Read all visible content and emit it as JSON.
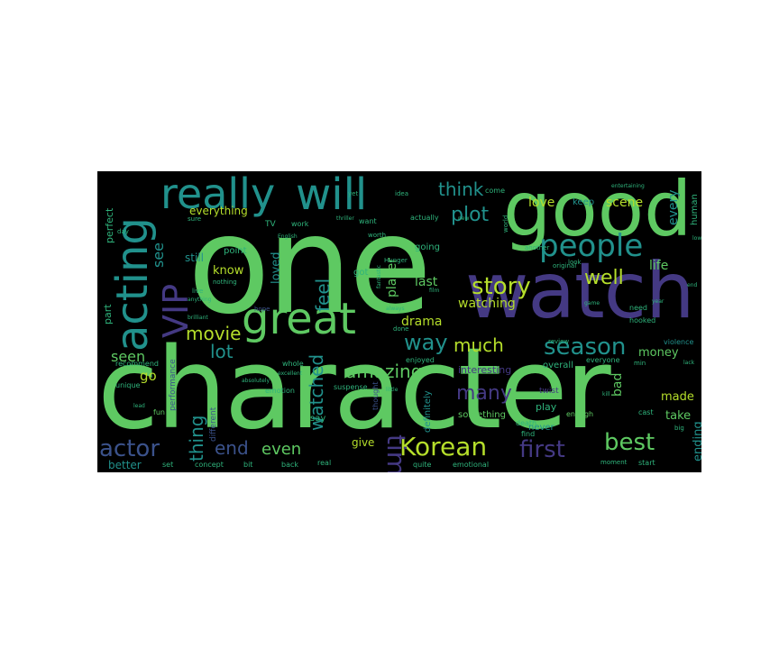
{
  "colors": {
    "background": "#000000",
    "green": "#5ec962",
    "teal": "#21918c",
    "blue": "#3b528b",
    "purple": "#443983",
    "yellowgreen": "#b5de2b",
    "darkgreen": "#2fb47c"
  },
  "words": [
    {
      "text": "one"
    },
    {
      "text": "character"
    },
    {
      "text": "good"
    },
    {
      "text": "watch"
    },
    {
      "text": "will"
    },
    {
      "text": "really"
    },
    {
      "text": "acting"
    },
    {
      "text": "people"
    },
    {
      "text": "great"
    },
    {
      "text": "story"
    },
    {
      "text": "VIP"
    },
    {
      "text": "Korean"
    },
    {
      "text": "time"
    },
    {
      "text": "season"
    },
    {
      "text": "best"
    },
    {
      "text": "first"
    },
    {
      "text": "actor"
    },
    {
      "text": "end"
    },
    {
      "text": "watched"
    },
    {
      "text": "way"
    },
    {
      "text": "amazing"
    },
    {
      "text": "many"
    },
    {
      "text": "think"
    },
    {
      "text": "plot"
    },
    {
      "text": "well"
    },
    {
      "text": "much"
    },
    {
      "text": "feel"
    },
    {
      "text": "movie"
    },
    {
      "text": "lot"
    },
    {
      "text": "thing"
    },
    {
      "text": "even"
    },
    {
      "text": "see"
    },
    {
      "text": "seen"
    },
    {
      "text": "go"
    },
    {
      "text": "life"
    },
    {
      "text": "love"
    },
    {
      "text": "scene"
    },
    {
      "text": "every"
    },
    {
      "text": "drama"
    },
    {
      "text": "watching"
    },
    {
      "text": "know"
    },
    {
      "text": "last"
    },
    {
      "text": "player"
    },
    {
      "text": "loved"
    },
    {
      "text": "money"
    },
    {
      "text": "made"
    },
    {
      "text": "bad"
    },
    {
      "text": "take"
    },
    {
      "text": "ending"
    },
    {
      "text": "give"
    },
    {
      "text": "better"
    },
    {
      "text": "still"
    },
    {
      "text": "everything"
    },
    {
      "text": "perfect"
    },
    {
      "text": "part"
    },
    {
      "text": "point"
    },
    {
      "text": "keep"
    },
    {
      "text": "human"
    },
    {
      "text": "going"
    },
    {
      "text": "play"
    },
    {
      "text": "never"
    },
    {
      "text": "say"
    },
    {
      "text": "got"
    },
    {
      "text": "interesting"
    },
    {
      "text": "definitely"
    },
    {
      "text": "something"
    },
    {
      "text": "recommend"
    },
    {
      "text": "performance"
    },
    {
      "text": "different"
    },
    {
      "text": "emotion"
    },
    {
      "text": "fun"
    },
    {
      "text": "unique"
    },
    {
      "text": "whole"
    },
    {
      "text": "suspense"
    },
    {
      "text": "thought"
    },
    {
      "text": "enjoyed"
    },
    {
      "text": "overall"
    },
    {
      "text": "everyone"
    },
    {
      "text": "violence"
    },
    {
      "text": "need"
    },
    {
      "text": "hooked"
    },
    {
      "text": "start"
    },
    {
      "text": "moment"
    },
    {
      "text": "cast"
    },
    {
      "text": "enough"
    },
    {
      "text": "find"
    },
    {
      "text": "death"
    },
    {
      "text": "quite"
    },
    {
      "text": "emotional"
    },
    {
      "text": "real"
    },
    {
      "text": "back"
    },
    {
      "text": "bit"
    },
    {
      "text": "concept"
    },
    {
      "text": "set"
    },
    {
      "text": "TV"
    },
    {
      "text": "work"
    },
    {
      "text": "want"
    },
    {
      "text": "actually"
    },
    {
      "text": "come"
    },
    {
      "text": "idea"
    },
    {
      "text": "yet"
    },
    {
      "text": "sure"
    },
    {
      "text": "worth"
    },
    {
      "text": "nothing"
    },
    {
      "text": "live"
    },
    {
      "text": "day"
    },
    {
      "text": "hope"
    },
    {
      "text": "look"
    },
    {
      "text": "world"
    },
    {
      "text": "twist"
    },
    {
      "text": "Hunger"
    },
    {
      "text": "always"
    },
    {
      "text": "done"
    },
    {
      "text": "another"
    },
    {
      "text": "original"
    },
    {
      "text": "review"
    },
    {
      "text": "min"
    },
    {
      "text": "big"
    },
    {
      "text": "film"
    },
    {
      "text": "year"
    },
    {
      "text": "excellent"
    },
    {
      "text": "brilliant"
    },
    {
      "text": "anything"
    },
    {
      "text": "fantastic"
    },
    {
      "text": "absolutely"
    },
    {
      "text": "little"
    },
    {
      "text": "thriller"
    },
    {
      "text": "English"
    },
    {
      "text": "entertaining"
    },
    {
      "text": "game"
    },
    {
      "text": "lack"
    },
    {
      "text": "new"
    },
    {
      "text": "lead"
    },
    {
      "text": "low"
    },
    {
      "text": "kill"
    },
    {
      "text": "end"
    }
  ]
}
